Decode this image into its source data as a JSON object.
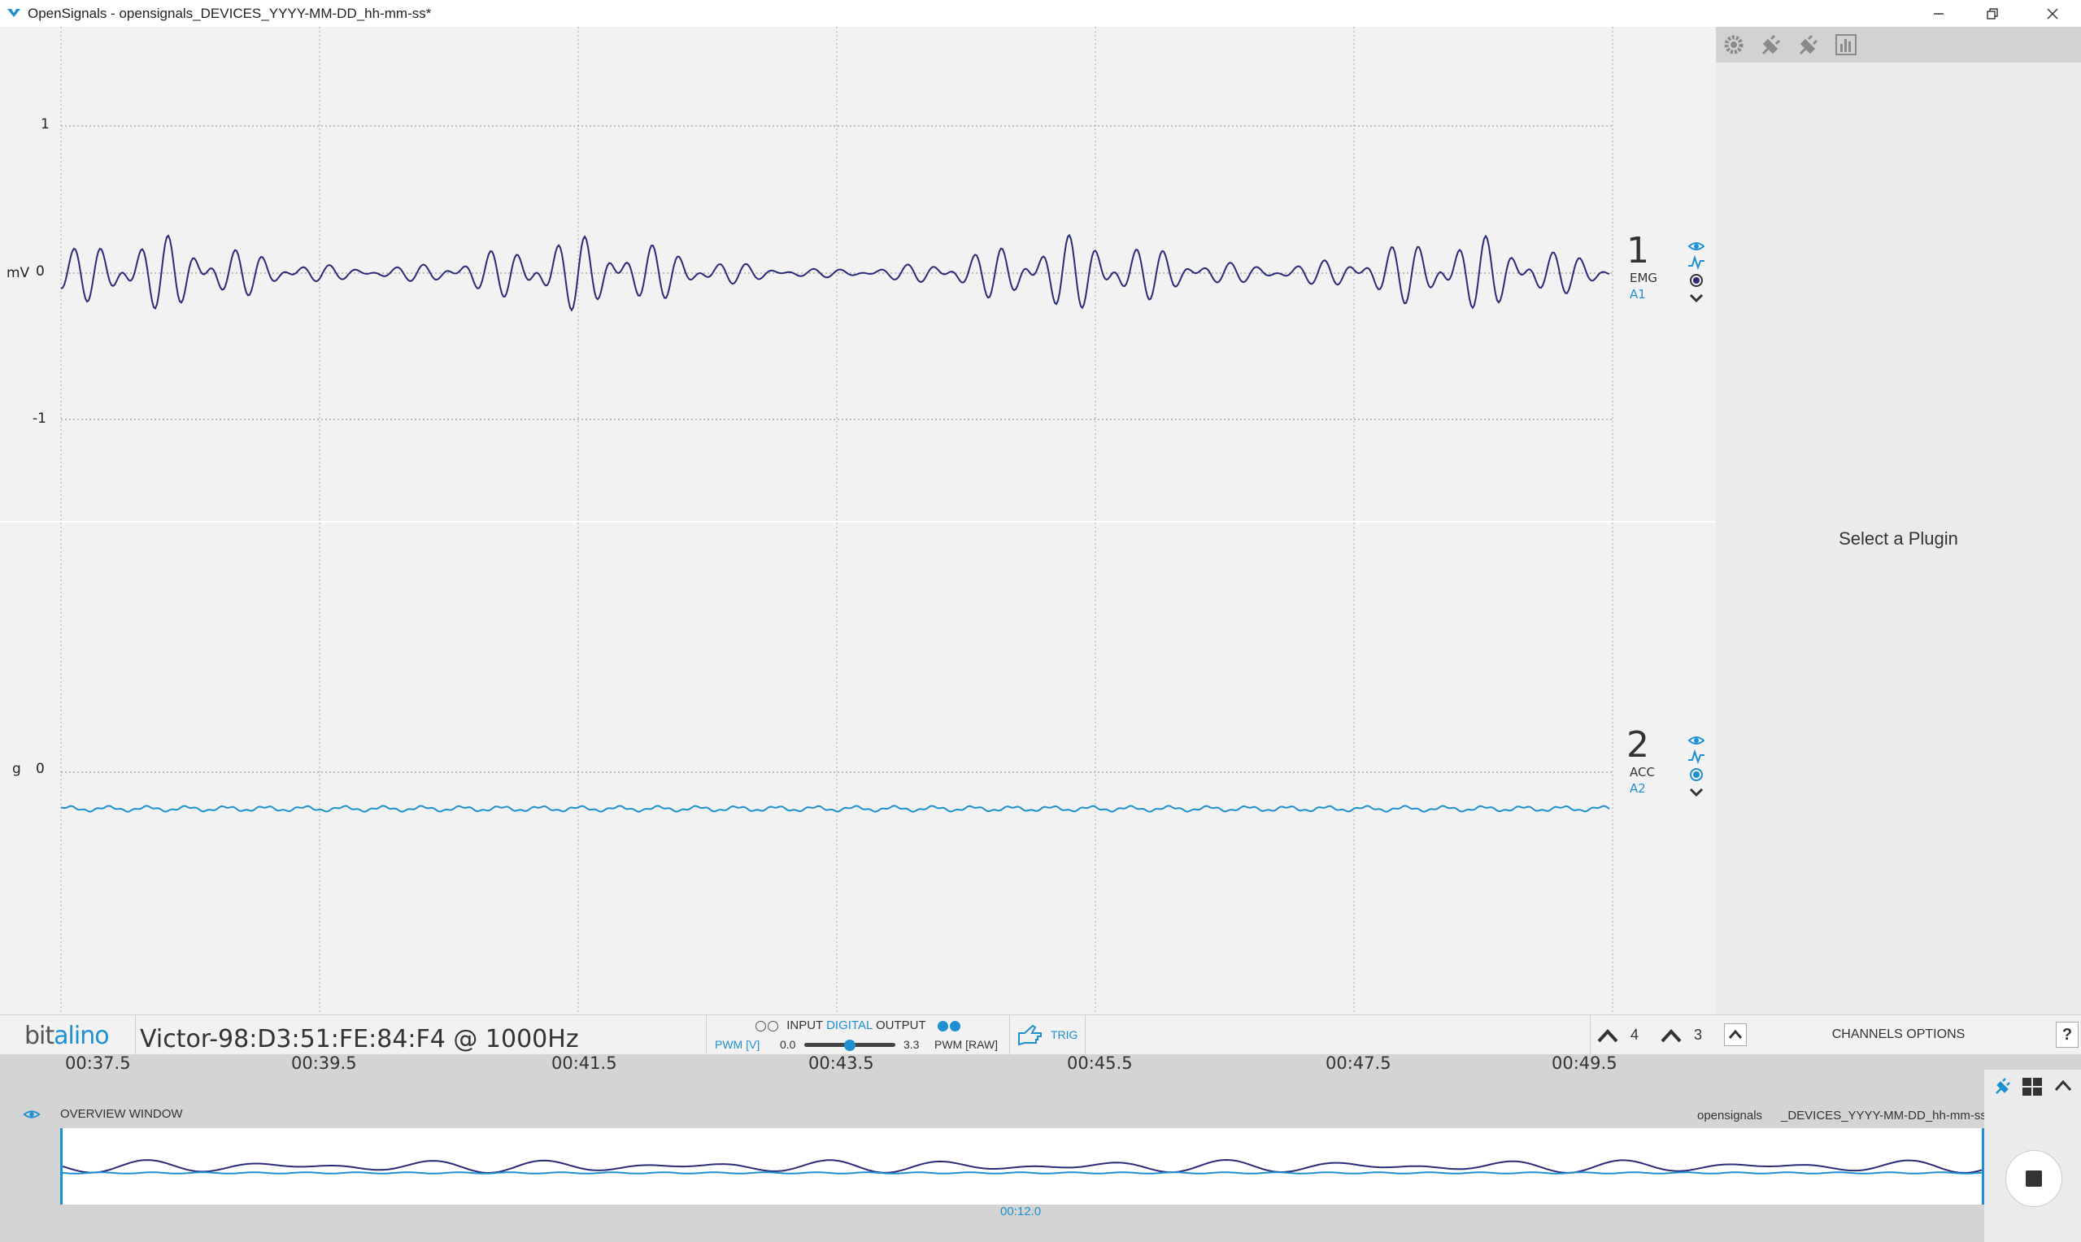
{
  "window": {
    "title": "OpenSignals - opensignals_DEVICES_YYYY-MM-DD_hh-mm-ss*"
  },
  "channels": [
    {
      "number": "1",
      "type": "EMG",
      "port": "A1",
      "unit": "mV",
      "y_ticks": [
        "1",
        "0",
        "-1"
      ],
      "color": "#2a2a78"
    },
    {
      "number": "2",
      "type": "ACC",
      "port": "A2",
      "unit": "g",
      "y_ticks": [
        "0"
      ],
      "color": "#1e90d0"
    }
  ],
  "plugin_panel": {
    "message": "Select a Plugin"
  },
  "device": {
    "logo_text_a": "bit",
    "logo_text_b": "alino",
    "info": "Victor-98:D3:51:FE:84:F4 @ 1000Hz"
  },
  "io": {
    "input_label": "INPUT",
    "digital_label": "DIGITAL",
    "output_label": "OUTPUT",
    "pwm_v_label": "PWM [V]",
    "pwm_min": "0.0",
    "pwm_max": "3.3",
    "pwm_raw_label": "PWM [RAW]",
    "pwm_value": 0.5
  },
  "trigger": {
    "label": "TRIG"
  },
  "scale_controls": {
    "up_a_value": "4",
    "up_b_value": "3"
  },
  "channels_options": {
    "label": "CHANNELS OPTIONS"
  },
  "time_axis": {
    "ticks": [
      "00:37.5",
      "00:39.5",
      "00:41.5",
      "00:43.5",
      "00:45.5",
      "00:47.5",
      "00:49.5"
    ]
  },
  "overview": {
    "label": "OVERVIEW WINDOW",
    "filename_a": "opensignals",
    "filename_b": "_DEVICES_YYYY-MM-DD_hh-mm-ss",
    "current_time": "00:12.0"
  },
  "help": {
    "label": "?"
  }
}
